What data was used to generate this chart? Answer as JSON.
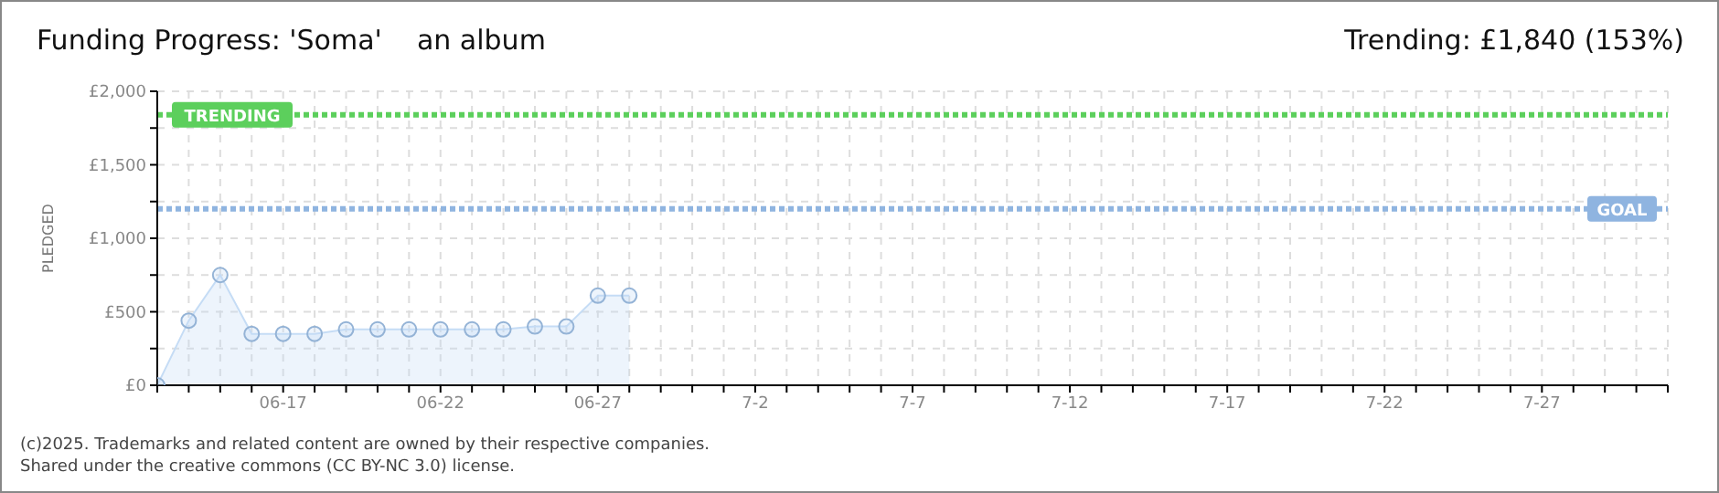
{
  "chart_data": {
    "type": "area",
    "title": "Funding Progress: 'Soma'    an album",
    "subtitle": "Trending: £1,840 (153%)",
    "ylabel": "PLEDGED",
    "categories": [
      null,
      null,
      null,
      null,
      "06-17",
      null,
      null,
      null,
      null,
      "06-22",
      null,
      null,
      null,
      null,
      "06-27",
      null,
      null,
      null,
      null,
      "7-2",
      null,
      null,
      null,
      null,
      "7-7",
      null,
      null,
      null,
      null,
      "7-12",
      null,
      null,
      null,
      null,
      "7-17",
      null,
      null,
      null,
      null,
      "7-22",
      null,
      null,
      null,
      null,
      "7-27",
      null,
      null,
      null,
      null
    ],
    "series": [
      {
        "color": "#c5dcf5",
        "values": [
          0,
          440,
          750,
          350,
          350,
          350,
          380,
          380,
          380,
          380,
          380,
          380,
          400,
          400,
          610,
          610,
          null,
          null,
          null,
          null,
          null,
          null,
          null,
          null,
          null,
          null,
          null,
          null,
          null,
          null,
          null,
          null,
          null,
          null,
          null,
          null,
          null,
          null,
          null,
          null,
          null,
          null,
          null,
          null,
          null,
          null,
          null,
          null,
          null
        ]
      }
    ],
    "ylim": [
      0,
      2000
    ],
    "yticks": [
      {
        "value": 0,
        "label": "£0"
      },
      {
        "value": 250,
        "label": null
      },
      {
        "value": 500,
        "label": "£500"
      },
      {
        "value": 750,
        "label": null
      },
      {
        "value": 1000,
        "label": "£1,000"
      },
      {
        "value": 1250,
        "label": null
      },
      {
        "value": 1500,
        "label": "£1,500"
      },
      {
        "value": 1750,
        "label": null
      },
      {
        "value": 2000,
        "label": "£2,000"
      }
    ],
    "ref_lines": [
      {
        "axis": "y",
        "value": 1840,
        "label": "TRENDING",
        "color": "#5ccf5c",
        "line_style": "dotted"
      },
      {
        "axis": "y",
        "value": 1200,
        "label": "GOAL",
        "color": "#8fb4e0",
        "line_style": "dotted"
      }
    ],
    "grid": true,
    "marker": "circle",
    "annotations": [
      "(c)2025. Trademarks and related content are owned by their respective companies.",
      "Shared under the creative commons (CC BY-NC 3.0) license."
    ]
  }
}
